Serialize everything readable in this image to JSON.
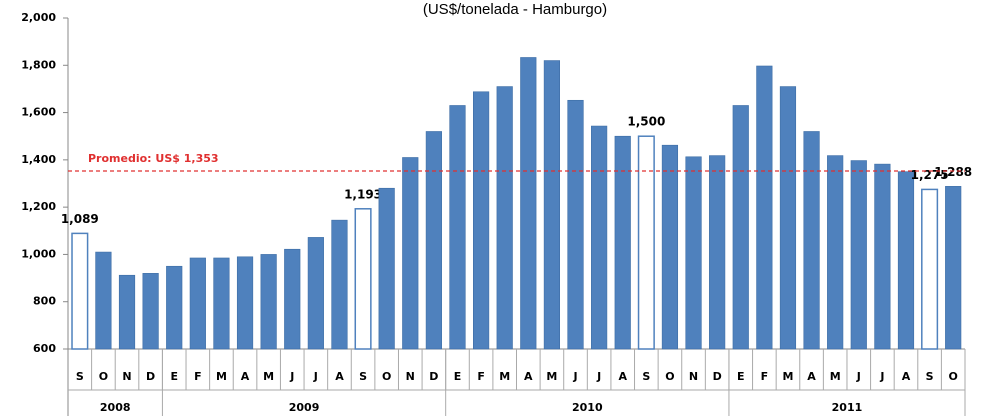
{
  "chart_data": {
    "type": "bar",
    "title": "(US$/tonelada - Hamburgo)",
    "categories": [
      "S",
      "O",
      "N",
      "D",
      "E",
      "F",
      "M",
      "A",
      "M",
      "J",
      "J",
      "A",
      "S",
      "O",
      "N",
      "D",
      "E",
      "F",
      "M",
      "A",
      "M",
      "J",
      "J",
      "A",
      "S",
      "O",
      "N",
      "D",
      "E",
      "F",
      "M",
      "A",
      "M",
      "J",
      "J",
      "A",
      "S",
      "O"
    ],
    "values": [
      1089,
      1010,
      912,
      920,
      950,
      985,
      985,
      990,
      1000,
      1022,
      1072,
      1145,
      1193,
      1280,
      1410,
      1520,
      1630,
      1688,
      1710,
      1833,
      1820,
      1652,
      1543,
      1500,
      1500,
      1462,
      1413,
      1418,
      1630,
      1797,
      1710,
      1520,
      1418,
      1397,
      1382,
      1350,
      1275,
      1288
    ],
    "value_labels": [
      "1,089",
      null,
      null,
      null,
      null,
      null,
      null,
      null,
      null,
      null,
      null,
      null,
      "1,193",
      null,
      null,
      null,
      null,
      null,
      null,
      null,
      null,
      null,
      null,
      null,
      "1,500",
      null,
      null,
      null,
      null,
      null,
      null,
      null,
      null,
      null,
      null,
      null,
      "1,275",
      "1,288"
    ],
    "color": "#4f81bd",
    "hollow": [
      0,
      12,
      24,
      36
    ],
    "year_groups": [
      {
        "label": "2008",
        "span": 4
      },
      {
        "label": "2009",
        "span": 12
      },
      {
        "label": "2010",
        "span": 12
      },
      {
        "label": "2011",
        "span": 10
      }
    ],
    "reference_line": {
      "value": 1353,
      "label": "Promedio: US$ 1,353",
      "color": "#e03030"
    },
    "ylim": [
      600,
      2000
    ],
    "yticks": [
      {
        "value": 600,
        "label": "600"
      },
      {
        "value": 800,
        "label": "800"
      },
      {
        "value": 1000,
        "label": "1,000"
      },
      {
        "value": 1200,
        "label": "1,200"
      },
      {
        "value": 1400,
        "label": "1,400"
      },
      {
        "value": 1600,
        "label": "1,600"
      },
      {
        "value": 1800,
        "label": "1,800"
      },
      {
        "value": 2000,
        "label": "2,000"
      }
    ]
  }
}
